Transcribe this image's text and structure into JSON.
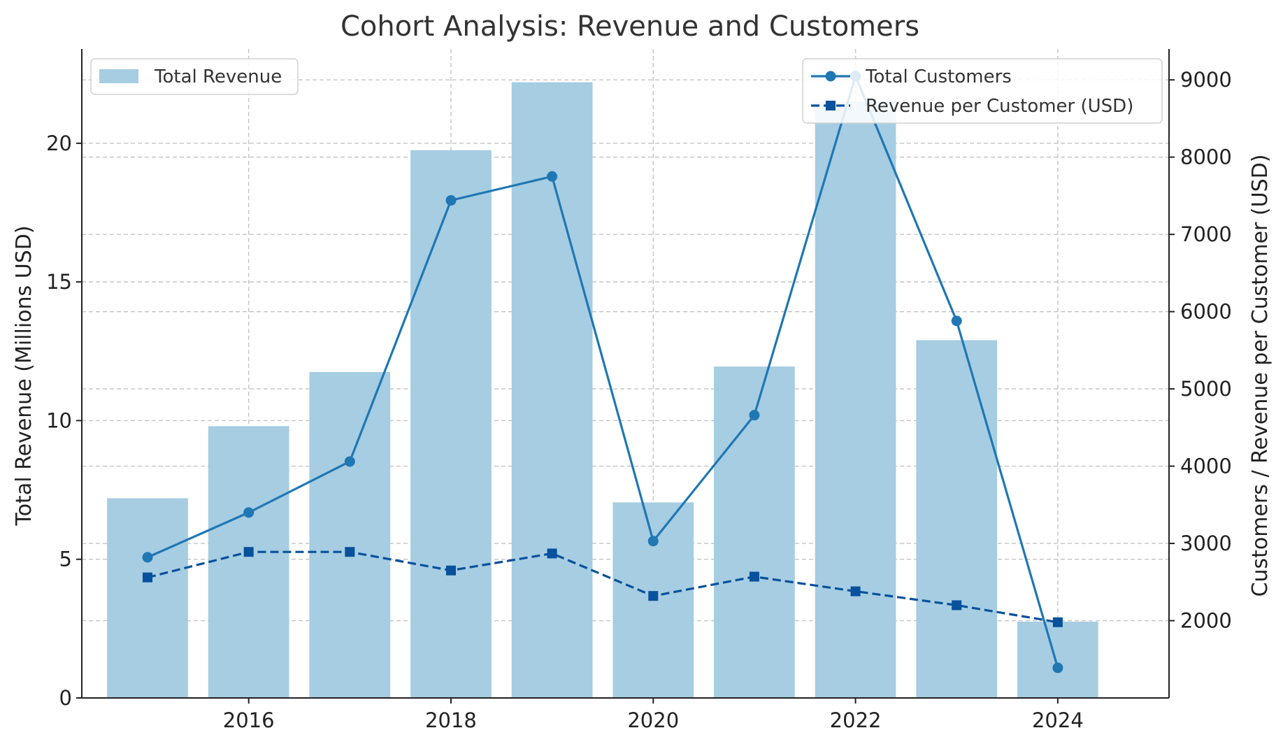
{
  "chart_data": {
    "type": "bar",
    "title": "Cohort Analysis: Revenue and Customers",
    "x": [
      2015,
      2016,
      2017,
      2018,
      2019,
      2020,
      2021,
      2022,
      2023,
      2024
    ],
    "x_ticks": [
      2016,
      2018,
      2020,
      2022,
      2024
    ],
    "x_tick_labels": [
      "2016",
      "2018",
      "2020",
      "2022",
      "2024"
    ],
    "xlim": [
      2014.35,
      2025.1
    ],
    "ylabel_left": "Total Revenue (Millions USD)",
    "ylabel_right": "Customers / Revenue per Customer (USD)",
    "ylim_left": [
      0,
      23.4
    ],
    "yticks_left": [
      0,
      5,
      10,
      15,
      20
    ],
    "yticks_left_labels": [
      "0",
      "5",
      "10",
      "15",
      "20"
    ],
    "ylim_right": [
      1000,
      9400
    ],
    "yticks_right": [
      2000,
      3000,
      4000,
      5000,
      6000,
      7000,
      8000,
      9000
    ],
    "yticks_right_labels": [
      "2000",
      "3000",
      "4000",
      "5000",
      "6000",
      "7000",
      "8000",
      "9000"
    ],
    "grid": true,
    "series": [
      {
        "name": "Total Revenue",
        "kind": "bar",
        "axis": "left",
        "color": "#a6cde2",
        "values": [
          7.2,
          9.8,
          11.75,
          19.75,
          22.2,
          7.05,
          11.95,
          21.5,
          12.9,
          2.75
        ]
      },
      {
        "name": "Total Customers",
        "kind": "line",
        "axis": "right",
        "marker": "circle",
        "dashed": false,
        "color": "#1f77b4",
        "values": [
          2820,
          3400,
          4060,
          7440,
          7750,
          3030,
          4660,
          9050,
          5880,
          1390
        ]
      },
      {
        "name": "Revenue per Customer (USD)",
        "kind": "line",
        "axis": "right",
        "marker": "square",
        "dashed": true,
        "color": "#08519c",
        "values": [
          2560,
          2890,
          2890,
          2650,
          2870,
          2320,
          2570,
          2380,
          2200,
          1980
        ]
      }
    ],
    "legend_left": {
      "placement": "top-left",
      "entries": [
        "Total Revenue"
      ]
    },
    "legend_right": {
      "placement": "top-right",
      "entries": [
        "Total Customers",
        "Revenue per Customer (USD)"
      ]
    }
  }
}
